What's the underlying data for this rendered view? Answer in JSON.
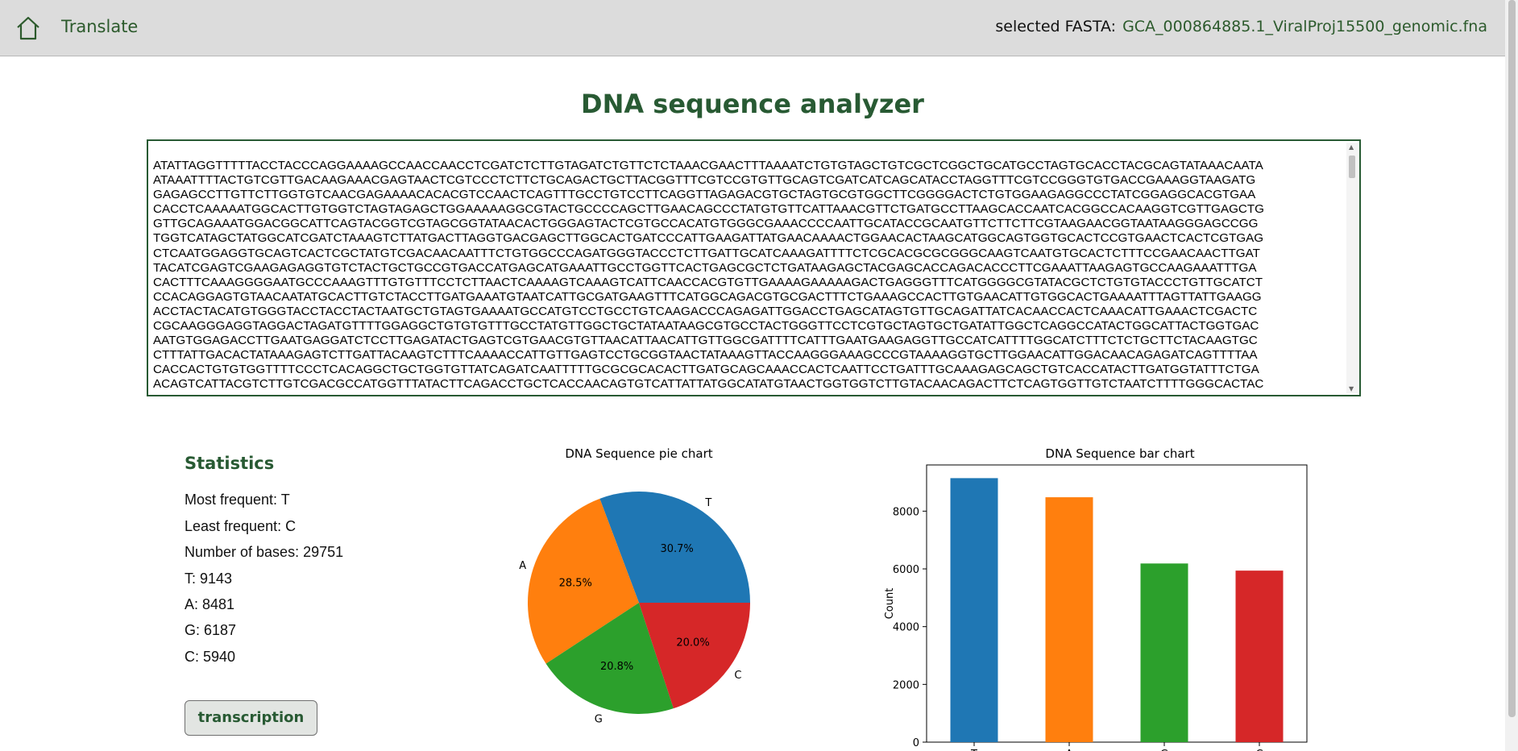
{
  "header": {
    "nav_label": "Translate",
    "fasta_label": "selected FASTA:",
    "fasta_name": "GCA_000864885.1_ViralProj15500_genomic.fna"
  },
  "page": {
    "title": "DNA sequence analyzer"
  },
  "sequence_lines": [
    "ATATTAGGTTTTTACCTACCCAGGAAAAGCCAACCAACCTCGATCTCTTGTAGATCTGTTCTCTAAACGAACTTTAAAATCTGTGTAGCTGTCGCTCGGCTGCATGCCTAGTGCACCTACGCAGTATAAACAATA",
    "ATAAATTTTACTGTCGTTGACAAGAAACGAGTAACTCGTCCCTCTTCTGCAGACTGCTTACGGTTTCGTCCGTGTTGCAGTCGATCATCAGCATACCTAGGTTTCGTCCGGGTGTGACCGAAAGGTAAGATG",
    "GAGAGCCTTGTTCTTGGTGTCAACGAGAAAACACACGTCCAACTCAGTTTGCCTGTCCTTCAGGTTAGAGACGTGCTAGTGCGTGGCTTCGGGGACTCTGTGGAAGAGGCCCTATCGGAGGCACGTGAA",
    "CACCTCAAAAATGGCACTTGTGGTCTAGTAGAGCTGGAAAAAGGCGTACTGCCCCAGCTTGAACAGCCCTATGTGTTCATTAAACGTTCTGATGCCTTAAGCACCAATCACGGCCACAAGGTCGTTGAGCTG",
    "GTTGCAGAAATGGACGGCATTCAGTACGGTCGTAGCGGTATAACACTGGGAGTACTCGTGCCACATGTGGGCGAAACCCCAATTGCATACCGCAATGTTCTTCTTCGTAAGAACGGTAATAAGGGAGCCGG",
    "TGGTCATAGCTATGGCATCGATCTAAAGTCTTATGACTTAGGTGACGAGCTTGGCACTGATCCCATTGAAGATTATGAACAAAACTGGAACACTAAGCATGGCAGTGGTGCACTCCGTGAACTCACTCGTGAG",
    "CTCAATGGAGGTGCAGTCACTCGCTATGTCGACAACAATTTCTGTGGCCCAGATGGGTACCCTCTTGATTGCATCAAAGATTTTCTCGCACGCGCGGGCAAGTCAATGTGCACTCTTTCCGAACAACTTGAT",
    "TACATCGAGTCGAAGAGAGGTGTCTACTGCTGCCGTGACCATGAGCATGAAATTGCCTGGTTCACTGAGCGCTCTGATAAGAGCTACGAGCACCAGACACCCTTCGAAATTAAGAGTGCCAAGAAATTTGA",
    "CACTTTCAAAGGGGAATGCCCAAAGTTTGTGTTTCCTCTTAACTCAAAAGTCAAAGTCATTCAACCACGTGTTGAAAAGAAAAAGACTGAGGGTTTCATGGGGCGTATACGCTCTGTGTACCCTGTTGCATCT",
    "CCACAGGAGTGTAACAATATGCACTTGTCTACCTTGATGAAATGTAATCATTGCGATGAAGTTTCATGGCAGACGTGCGACTTTCTGAAAGCCACTTGTGAACATTGTGGCACTGAAAATTTAGTTATTGAAGG",
    "ACCTACTACATGTGGGTACCTACCTACTAATGCTGTAGTGAAAATGCCATGTCCTGCCTGTCAAGACCCAGAGATTGGACCTGAGCATAGTGTTGCAGATTATCACAACCACTCAAACATTGAAACTCGACTC",
    "CGCAAGGGAGGTAGGACTAGATGTTTTGGAGGCTGTGTGTTTGCCTATGTTGGCTGCTATAATAAGCGTGCCTACTGGGTTCCTCGTGCTAGTGCTGATATTGGCTCAGGCCATACTGGCATTACTGGTGAC",
    "AATGTGGAGACCTTGAATGAGGATCTCCTTGAGATACTGAGTCGTGAACGTGTTAACATTAACATTGTTGGCGATTTTCATTTGAATGAAGAGGTTGCCATCATTTTGGCATCTTTCTCTGCTTCTACAAGTGC",
    "CTTTATTGACACTATAAAGAGTCTTGATTACAAGTCTTTCAAAACCATTGTTGAGTCCTGCGGTAACTATAAAGTTACCAAGGGAAAGCCCGTAAAAGGTGCTTGGAACATTGGACAACAGAGATCAGTTTTAA",
    "CACCACTGTGTGGTTTTCCCTCACAGGCTGCTGGTGTTATCAGATCAATTTTTGCGCGCACACTTGATGCAGCAAACCACTCAATTCCTGATTTGCAAAGAGCAGCTGTCACCATACTTGATGGTATTTCTGA",
    "ACAGTCATTACGTCTTGTCGACGCCATGGTTTATACTTCAGACCTGCTCACCAACAGTGTCATTATTATGGCATATGTAACTGGTGGTCTTGTACAACAGACTTCTCAGTGGTTGTCTAATCTTTTGGGCACTAC"
  ],
  "stats": {
    "title": "Statistics",
    "most_frequent": "Most frequent: T",
    "least_frequent": "Least frequent: C",
    "num_bases": "Number of bases: 29751",
    "t": "T: 9143",
    "a": "A: 8481",
    "g": "G: 6187",
    "c": "C: 5940",
    "button_label": "transcription"
  },
  "colors": {
    "T": "#1f77b4",
    "A": "#ff7f0e",
    "G": "#2ca02c",
    "C": "#d62728",
    "accent": "#285a33"
  },
  "chart_data": [
    {
      "type": "pie",
      "title": "DNA Sequence pie chart",
      "labels": [
        "T",
        "A",
        "G",
        "C"
      ],
      "values": [
        9143,
        8481,
        6187,
        5940
      ],
      "percent_labels": [
        "30.7%",
        "28.5%",
        "20.8%",
        "20.0%"
      ]
    },
    {
      "type": "bar",
      "title": "DNA Sequence bar chart",
      "categories": [
        "T",
        "A",
        "G",
        "C"
      ],
      "values": [
        9143,
        8481,
        6187,
        5940
      ],
      "xlabel": "",
      "ylabel": "Count",
      "yticks": [
        0,
        2000,
        4000,
        6000,
        8000
      ],
      "ylim": [
        0,
        9600
      ]
    }
  ]
}
